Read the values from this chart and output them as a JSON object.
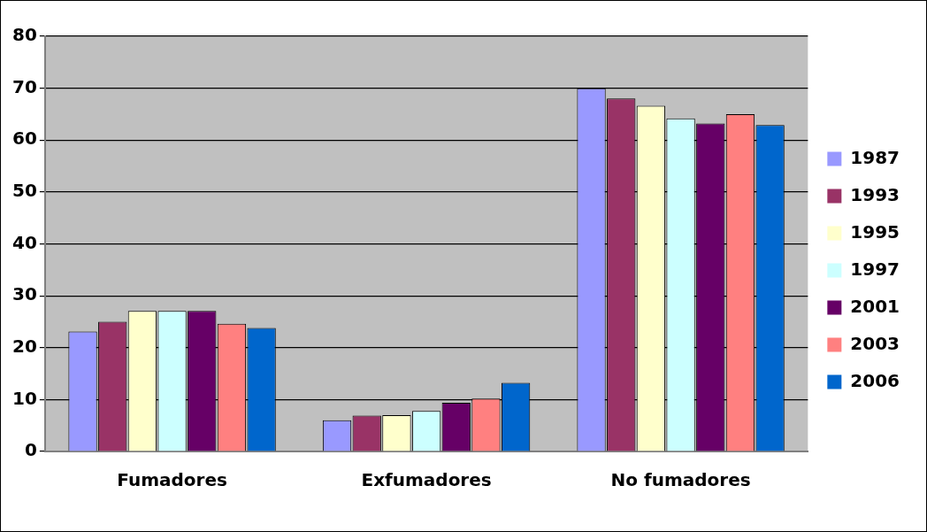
{
  "chart_data": {
    "type": "bar",
    "categories": [
      "Fumadores",
      "Exfumadores",
      "No fumadores"
    ],
    "series": [
      {
        "name": "1987",
        "color": "#9999ff",
        "values": [
          23.1,
          6.0,
          70.0
        ]
      },
      {
        "name": "1993",
        "color": "#993366",
        "values": [
          25.0,
          6.9,
          68.0
        ]
      },
      {
        "name": "1995",
        "color": "#ffffcc",
        "values": [
          27.1,
          7.0,
          66.6
        ]
      },
      {
        "name": "1997",
        "color": "#ccffff",
        "values": [
          27.1,
          7.8,
          64.2
        ]
      },
      {
        "name": "2001",
        "color": "#660066",
        "values": [
          27.1,
          9.4,
          63.2
        ]
      },
      {
        "name": "2003",
        "color": "#ff8080",
        "values": [
          24.6,
          10.2,
          65.0
        ]
      },
      {
        "name": "2006",
        "color": "#0066cc",
        "values": [
          23.8,
          13.2,
          62.9
        ]
      }
    ],
    "ylim": [
      0,
      80
    ],
    "yticks": [
      0,
      10,
      20,
      30,
      40,
      50,
      60,
      70,
      80
    ],
    "grid": "y",
    "legend": "right"
  }
}
